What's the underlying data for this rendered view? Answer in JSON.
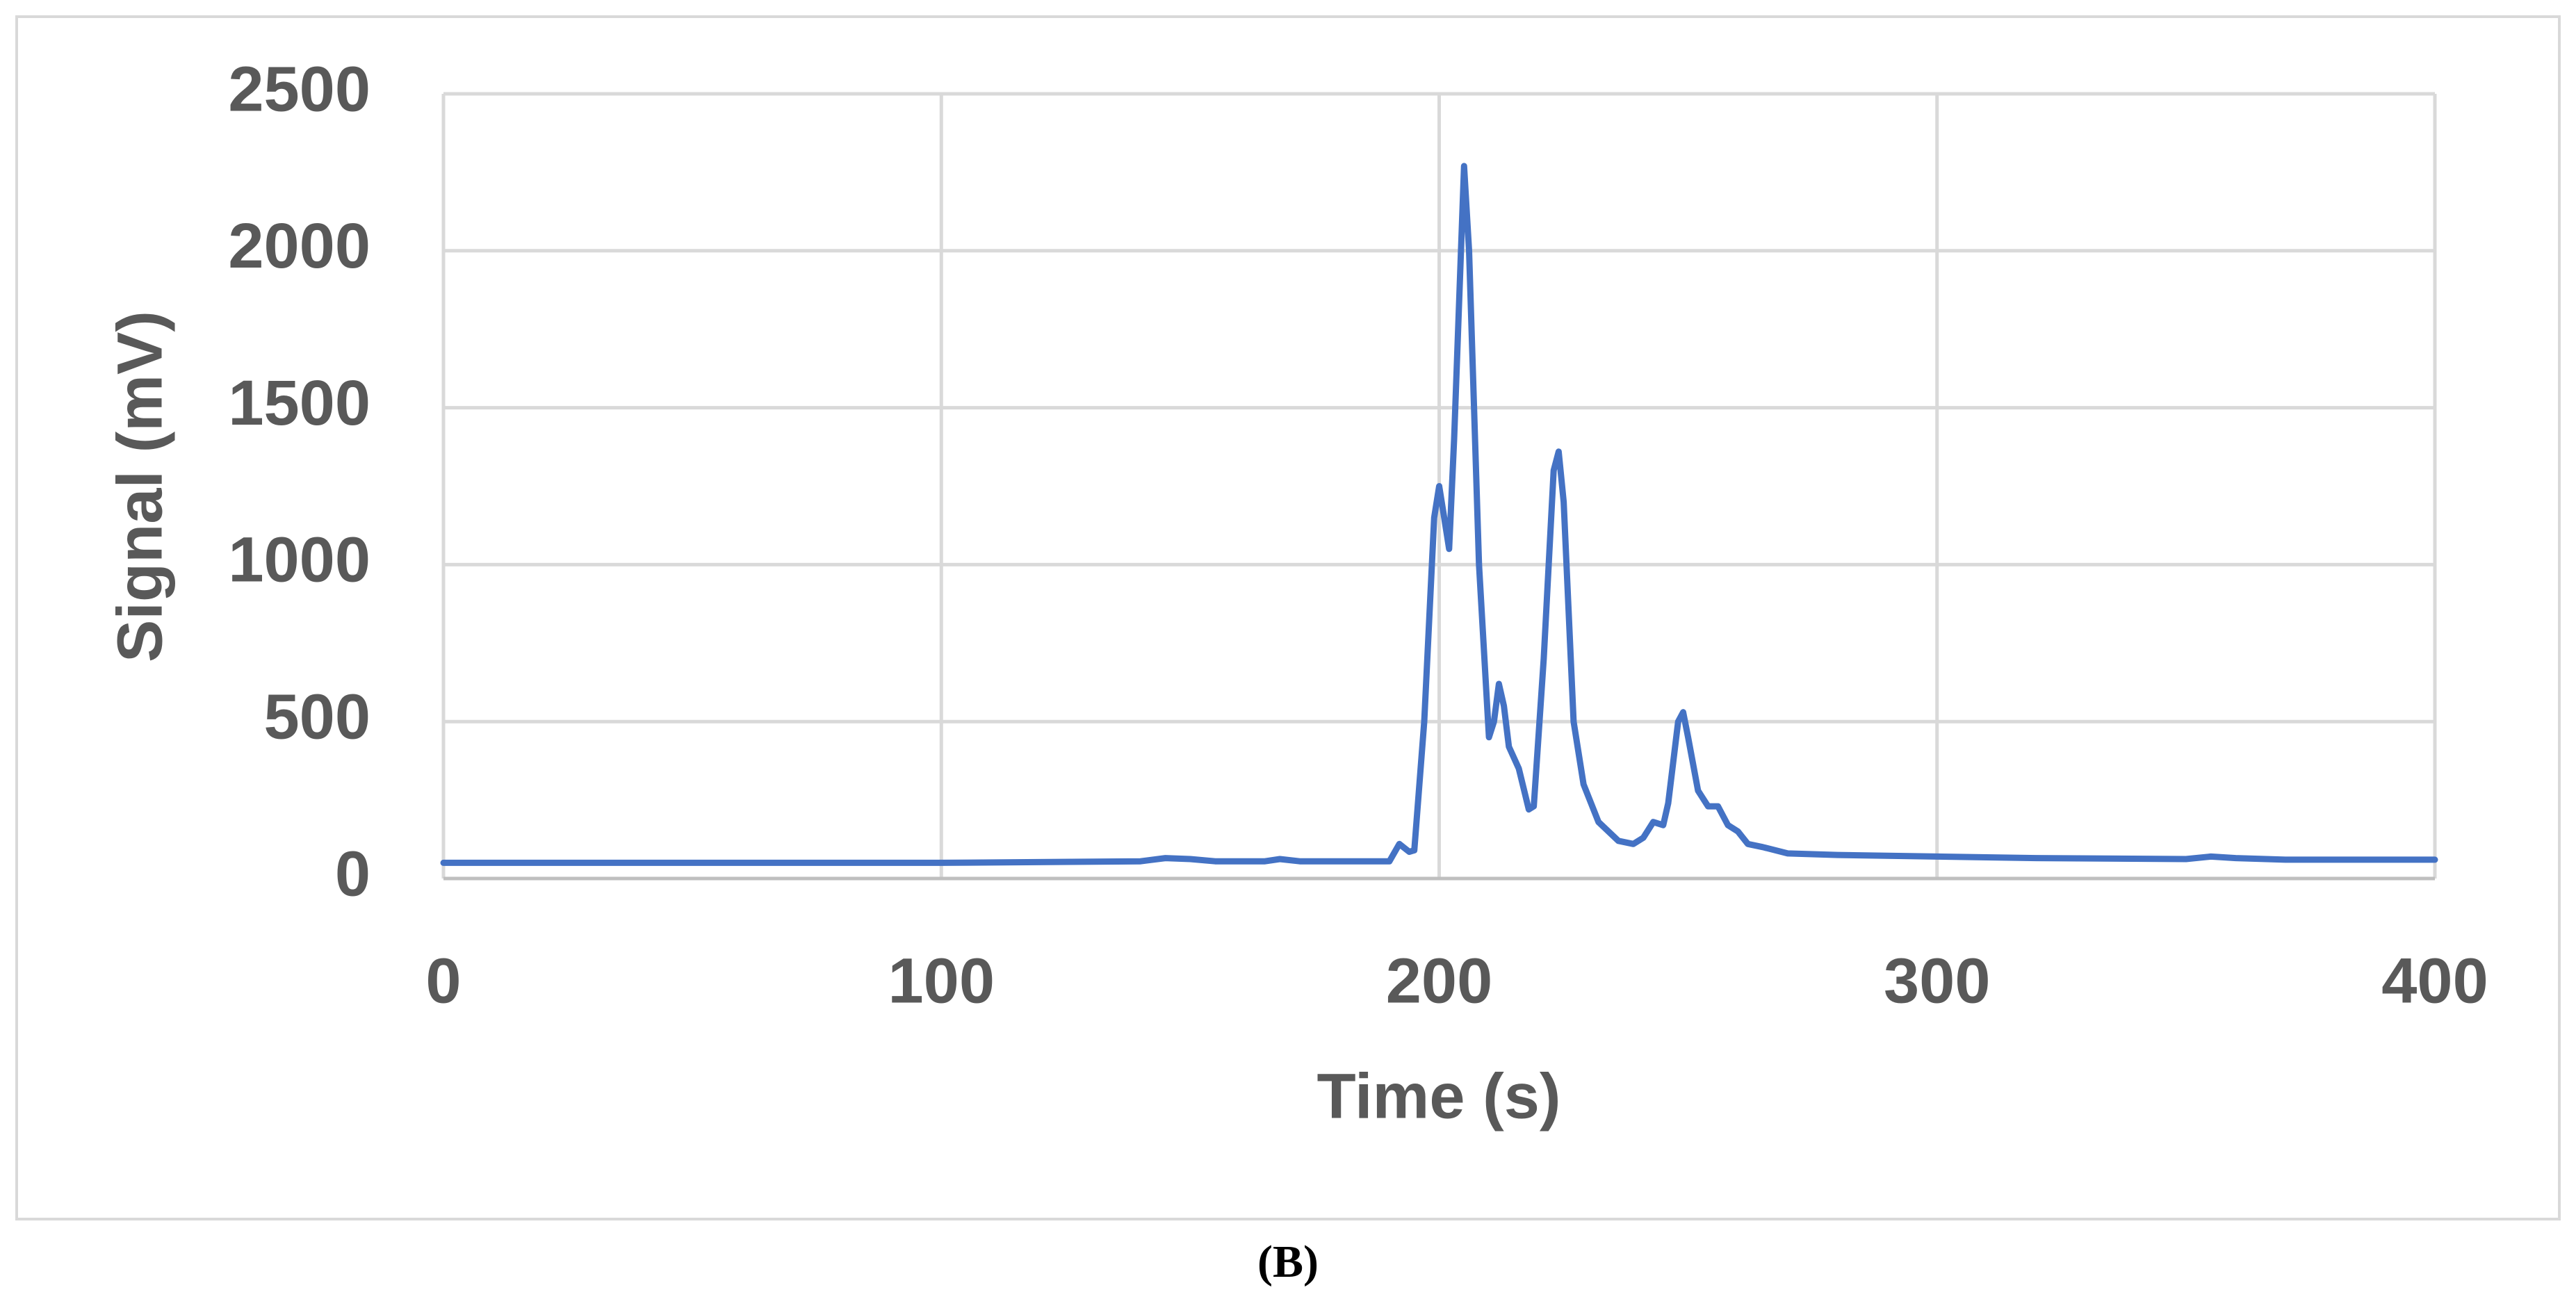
{
  "chart_data": {
    "type": "line",
    "x_label": "Time (s)",
    "y_label": "Signal (mV)",
    "caption": "(B)",
    "series": [
      {
        "color": "#4472c4",
        "x": [
          0,
          50,
          100,
          140,
          145,
          150,
          155,
          165,
          168,
          172,
          180,
          190,
          192,
          194,
          195,
          197,
          199,
          200,
          201,
          202,
          203,
          205,
          206,
          208,
          210,
          211,
          212,
          213,
          214,
          216,
          218,
          219,
          221,
          223,
          224,
          225,
          227,
          229,
          232,
          236,
          239,
          241,
          243,
          245,
          246,
          248,
          249,
          250,
          252,
          254,
          256,
          258,
          260,
          262,
          265,
          270,
          280,
          300,
          320,
          350,
          355,
          360,
          370,
          390,
          400
        ],
        "values": [
          50,
          50,
          50,
          55,
          65,
          62,
          55,
          55,
          62,
          55,
          55,
          55,
          110,
          85,
          90,
          500,
          1150,
          1250,
          1150,
          1050,
          1400,
          2270,
          2000,
          1000,
          450,
          500,
          620,
          550,
          420,
          350,
          220,
          230,
          700,
          1300,
          1360,
          1200,
          500,
          300,
          180,
          120,
          110,
          130,
          180,
          170,
          240,
          500,
          530,
          450,
          280,
          230,
          230,
          170,
          150,
          110,
          100,
          80,
          75,
          70,
          65,
          62,
          70,
          65,
          60,
          60,
          60
        ]
      }
    ],
    "xlim": [
      0,
      400
    ],
    "xticks": [
      0,
      100,
      200,
      300,
      400
    ],
    "ylim": [
      0,
      2500
    ],
    "yticks": [
      0,
      500,
      1000,
      1500,
      2000,
      2500
    ],
    "grid": true
  }
}
